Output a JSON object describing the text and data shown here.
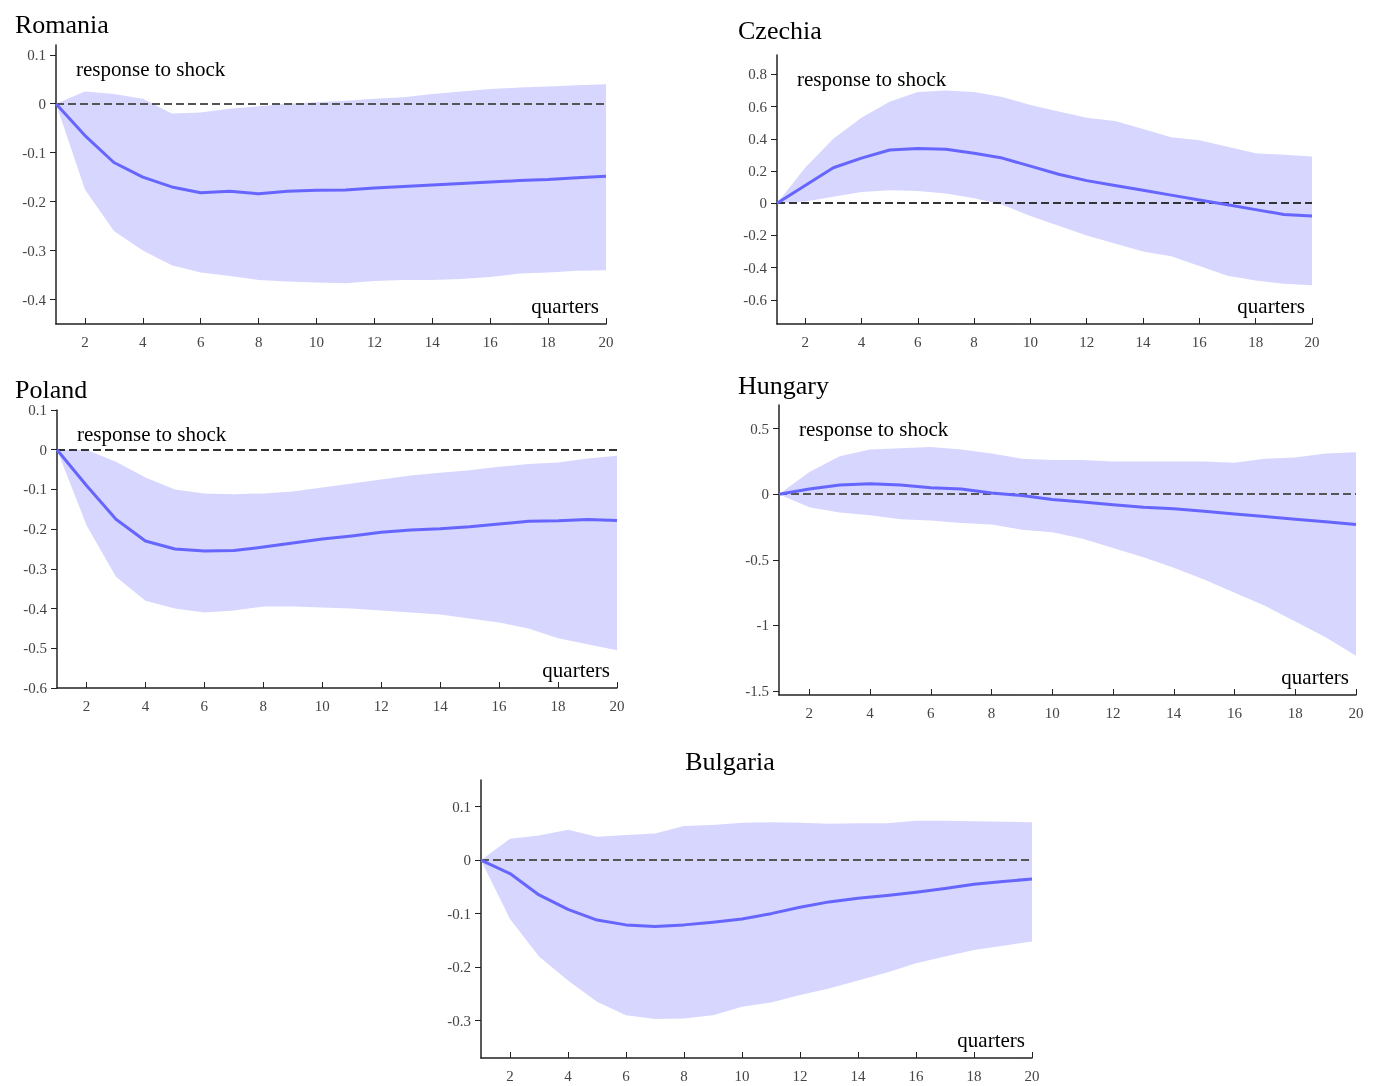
{
  "chart_data": [
    {
      "type": "line",
      "title": "Romania",
      "ylabel": "response to shock",
      "xlabel": "quarters",
      "xlim": [
        1,
        20
      ],
      "xticks": [
        2,
        4,
        6,
        8,
        10,
        12,
        14,
        16,
        18,
        20
      ],
      "ylim": [
        -0.45,
        0.12
      ],
      "yticks": [
        -0.4,
        -0.3,
        -0.2,
        -0.1,
        0,
        0.1
      ],
      "ref_lines": [
        {
          "axis": "y",
          "value": 0,
          "line_style": "dashed",
          "color": "#555555"
        }
      ],
      "series": [
        {
          "color": "#6666ff",
          "x": [
            1,
            2,
            3,
            4,
            5,
            6,
            7,
            8,
            9,
            10,
            11,
            12,
            13,
            14,
            15,
            16,
            17,
            18,
            19,
            20
          ],
          "values": [
            0,
            -0.065,
            -0.12,
            -0.15,
            -0.17,
            -0.182,
            -0.179,
            -0.184,
            -0.179,
            -0.177,
            -0.176,
            -0.172,
            -0.169,
            -0.166,
            -0.163,
            -0.16,
            -0.157,
            -0.155,
            -0.151,
            -0.148
          ],
          "upper": [
            0,
            0.025,
            0.02,
            0.01,
            -0.02,
            -0.018,
            -0.01,
            -0.005,
            0,
            0.003,
            0.006,
            0.01,
            0.013,
            0.02,
            0.025,
            0.03,
            0.033,
            0.035,
            0.038,
            0.04
          ],
          "lower": [
            0,
            -0.175,
            -0.26,
            -0.3,
            -0.33,
            -0.345,
            -0.352,
            -0.36,
            -0.363,
            -0.365,
            -0.367,
            -0.362,
            -0.36,
            -0.36,
            -0.358,
            -0.354,
            -0.347,
            -0.345,
            -0.341,
            -0.34
          ]
        }
      ]
    },
    {
      "type": "line",
      "title": "Czechia",
      "ylabel": "response to shock",
      "xlabel": "quarters",
      "xlim": [
        1,
        20
      ],
      "xticks": [
        2,
        4,
        6,
        8,
        10,
        12,
        14,
        16,
        18,
        20
      ],
      "ylim": [
        -0.75,
        0.92
      ],
      "yticks": [
        -0.6,
        -0.4,
        -0.2,
        0,
        0.2,
        0.4,
        0.6,
        0.8
      ],
      "ref_lines": [
        {
          "axis": "y",
          "value": 0,
          "line_style": "dashed",
          "color": "#333333"
        }
      ],
      "series": [
        {
          "color": "#6666ff",
          "x": [
            1,
            2,
            3,
            4,
            5,
            6,
            7,
            8,
            9,
            10,
            11,
            12,
            13,
            14,
            15,
            16,
            17,
            18,
            19,
            20
          ],
          "values": [
            0,
            0.11,
            0.22,
            0.28,
            0.33,
            0.34,
            0.335,
            0.31,
            0.28,
            0.23,
            0.18,
            0.14,
            0.11,
            0.08,
            0.05,
            0.02,
            -0.01,
            -0.04,
            -0.07,
            -0.08
          ],
          "upper": [
            0,
            0.22,
            0.4,
            0.53,
            0.63,
            0.69,
            0.7,
            0.69,
            0.66,
            0.61,
            0.57,
            0.53,
            0.51,
            0.46,
            0.41,
            0.39,
            0.35,
            0.31,
            0.3,
            0.29
          ],
          "lower": [
            0,
            0.01,
            0.04,
            0.07,
            0.08,
            0.075,
            0.06,
            0.03,
            -0.01,
            -0.08,
            -0.14,
            -0.2,
            -0.25,
            -0.3,
            -0.33,
            -0.39,
            -0.45,
            -0.48,
            -0.5,
            -0.51
          ]
        }
      ]
    },
    {
      "type": "line",
      "title": "Poland",
      "ylabel": "response to shock",
      "xlabel": "quarters",
      "xlim": [
        1,
        20
      ],
      "xticks": [
        2,
        4,
        6,
        8,
        10,
        12,
        14,
        16,
        18,
        20
      ],
      "ylim": [
        -0.6,
        0.1
      ],
      "yticks": [
        -0.6,
        -0.5,
        -0.4,
        -0.3,
        -0.2,
        -0.1,
        0,
        0.1
      ],
      "ref_lines": [
        {
          "axis": "y",
          "value": 0,
          "line_style": "dashed",
          "color": "#333333"
        }
      ],
      "series": [
        {
          "color": "#6666ff",
          "x": [
            1,
            2,
            3,
            4,
            5,
            6,
            7,
            8,
            9,
            10,
            11,
            12,
            13,
            14,
            15,
            16,
            17,
            18,
            19,
            20
          ],
          "values": [
            0,
            -0.09,
            -0.175,
            -0.23,
            -0.25,
            -0.255,
            -0.254,
            -0.245,
            -0.235,
            -0.225,
            -0.217,
            -0.208,
            -0.202,
            -0.199,
            -0.194,
            -0.187,
            -0.18,
            -0.179,
            -0.176,
            -0.178
          ],
          "upper": [
            0,
            0,
            -0.03,
            -0.07,
            -0.1,
            -0.11,
            -0.112,
            -0.11,
            -0.105,
            -0.095,
            -0.085,
            -0.075,
            -0.065,
            -0.058,
            -0.052,
            -0.043,
            -0.036,
            -0.032,
            -0.022,
            -0.015
          ],
          "lower": [
            0,
            -0.19,
            -0.32,
            -0.38,
            -0.4,
            -0.41,
            -0.405,
            -0.395,
            -0.395,
            -0.397,
            -0.4,
            -0.405,
            -0.41,
            -0.415,
            -0.425,
            -0.435,
            -0.45,
            -0.475,
            -0.49,
            -0.505
          ]
        }
      ]
    },
    {
      "type": "line",
      "title": "Hungary",
      "ylabel": "response to shock",
      "xlabel": "quarters",
      "xlim": [
        1,
        20
      ],
      "xticks": [
        2,
        4,
        6,
        8,
        10,
        12,
        14,
        16,
        18,
        20
      ],
      "ylim": [
        -1.53,
        0.68
      ],
      "yticks": [
        -1.5,
        -1,
        -0.5,
        0,
        0.5
      ],
      "ref_lines": [
        {
          "axis": "y",
          "value": 0,
          "line_style": "dashed",
          "color": "#555555"
        }
      ],
      "series": [
        {
          "color": "#6666ff",
          "x": [
            1,
            2,
            3,
            4,
            5,
            6,
            7,
            8,
            9,
            10,
            11,
            12,
            13,
            14,
            15,
            16,
            17,
            18,
            19,
            20
          ],
          "values": [
            0,
            0.04,
            0.07,
            0.08,
            0.07,
            0.05,
            0.04,
            0.01,
            -0.01,
            -0.04,
            -0.06,
            -0.08,
            -0.1,
            -0.11,
            -0.13,
            -0.15,
            -0.17,
            -0.19,
            -0.21,
            -0.23
          ],
          "upper": [
            0,
            0.17,
            0.29,
            0.34,
            0.35,
            0.36,
            0.34,
            0.31,
            0.27,
            0.26,
            0.26,
            0.25,
            0.25,
            0.25,
            0.25,
            0.24,
            0.27,
            0.28,
            0.31,
            0.32
          ],
          "lower": [
            0,
            -0.1,
            -0.14,
            -0.16,
            -0.19,
            -0.2,
            -0.22,
            -0.23,
            -0.27,
            -0.29,
            -0.34,
            -0.41,
            -0.48,
            -0.56,
            -0.65,
            -0.75,
            -0.85,
            -0.97,
            -1.09,
            -1.23
          ]
        }
      ]
    },
    {
      "type": "line",
      "title": "Bulgaria",
      "xlabel": "quarters",
      "xlim": [
        1,
        20
      ],
      "xticks": [
        2,
        4,
        6,
        8,
        10,
        12,
        14,
        16,
        18,
        20
      ],
      "ylim": [
        -0.37,
        0.15
      ],
      "yticks": [
        -0.3,
        -0.2,
        -0.1,
        0,
        0.1
      ],
      "ref_lines": [
        {
          "axis": "y",
          "value": 0,
          "line_style": "dashed",
          "color": "#555555"
        }
      ],
      "series": [
        {
          "color": "#6666ff",
          "x": [
            1,
            2,
            3,
            4,
            5,
            6,
            7,
            8,
            9,
            10,
            11,
            12,
            13,
            14,
            15,
            16,
            17,
            18,
            19,
            20
          ],
          "values": [
            0,
            -0.025,
            -0.065,
            -0.092,
            -0.112,
            -0.121,
            -0.124,
            -0.121,
            -0.116,
            -0.11,
            -0.1,
            -0.088,
            -0.078,
            -0.071,
            -0.066,
            -0.06,
            -0.053,
            -0.045,
            -0.04,
            -0.035
          ],
          "upper": [
            0,
            0.04,
            0.046,
            0.057,
            0.044,
            0.047,
            0.05,
            0.064,
            0.066,
            0.07,
            0.071,
            0.07,
            0.068,
            0.069,
            0.069,
            0.074,
            0.074,
            0.073,
            0.072,
            0.071
          ],
          "lower": [
            0,
            -0.11,
            -0.18,
            -0.225,
            -0.265,
            -0.29,
            -0.297,
            -0.296,
            -0.29,
            -0.274,
            -0.266,
            -0.252,
            -0.24,
            -0.225,
            -0.21,
            -0.193,
            -0.18,
            -0.168,
            -0.16,
            -0.152
          ]
        }
      ]
    }
  ]
}
